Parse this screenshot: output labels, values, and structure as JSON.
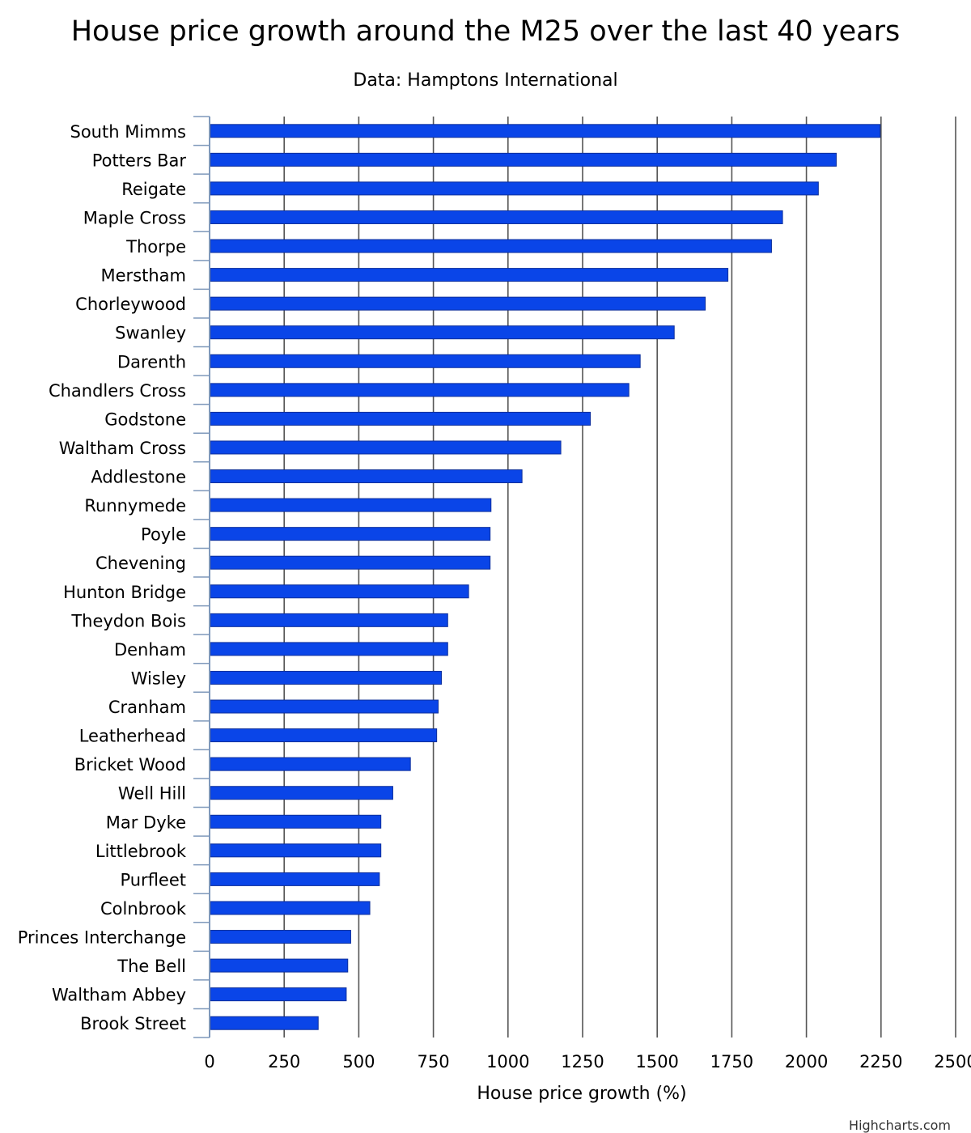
{
  "chart_data": {
    "type": "bar",
    "orientation": "horizontal",
    "title": "House price growth around the M25 over the last 40 years",
    "subtitle": "Data: Hamptons International",
    "xlabel": "House price growth (%)",
    "ylabel": "",
    "xlim": [
      0,
      2500
    ],
    "tick_step": 250,
    "ticks": [
      "0",
      "250",
      "500",
      "750",
      "1000",
      "1250",
      "1500",
      "1750",
      "2000",
      "2250",
      "2500"
    ],
    "grid": true,
    "legend": "none",
    "bar_color": "#0a45e8",
    "categories": [
      "South Mimms",
      "Potters Bar",
      "Reigate",
      "Maple Cross",
      "Thorpe",
      "Merstham",
      "Chorleywood",
      "Swanley",
      "Darenth",
      "Chandlers Cross",
      "Godstone",
      "Waltham Cross",
      "Addlestone",
      "Runnymede",
      "Poyle",
      "Chevening",
      "Hunton Bridge",
      "Theydon Bois",
      "Denham",
      "Wisley",
      "Cranham",
      "Leatherhead",
      "Bricket Wood",
      "Well Hill",
      "Mar Dyke",
      "Littlebrook",
      "Purfleet",
      "Colnbrook",
      "Princes Interchange",
      "The Bell",
      "Waltham Abbey",
      "Brook Street"
    ],
    "values": [
      2247,
      2100,
      2040,
      1920,
      1883,
      1737,
      1661,
      1557,
      1443,
      1405,
      1276,
      1177,
      1047,
      943,
      940,
      940,
      868,
      798,
      798,
      777,
      766,
      761,
      673,
      614,
      574,
      574,
      569,
      537,
      473,
      463,
      458,
      364
    ]
  },
  "credits": "Highcharts.com"
}
